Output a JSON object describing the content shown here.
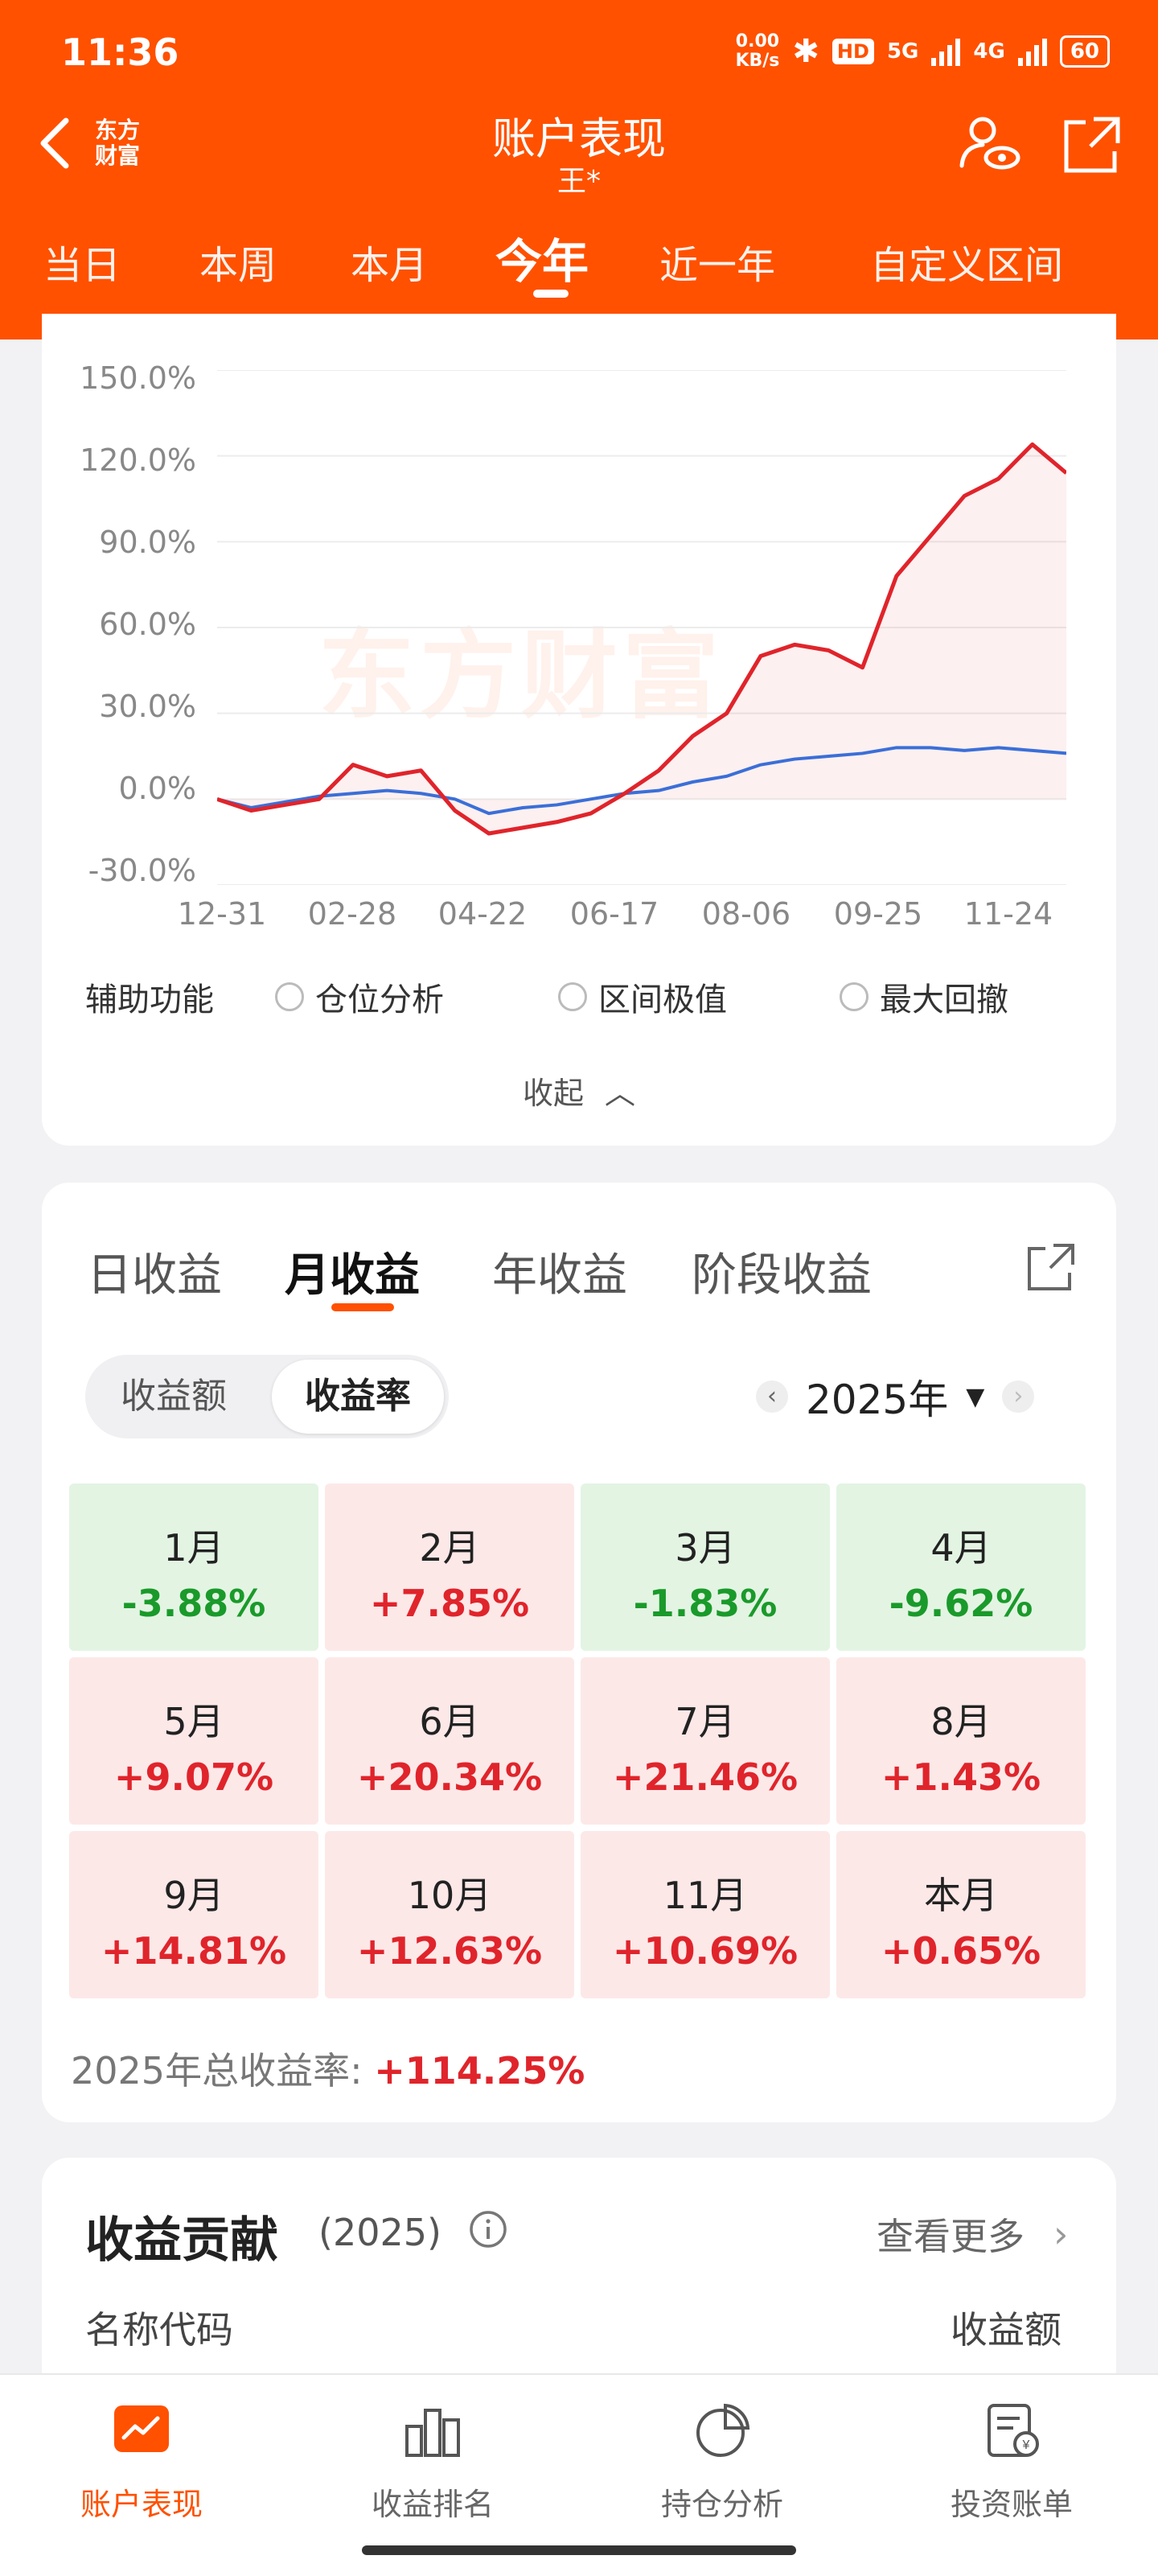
{
  "status_bar": {
    "time": "11:36",
    "speed_value": "0.00",
    "speed_unit": "KB/s",
    "hd_label": "HD",
    "net1": "5G",
    "net2": "4G",
    "battery": "60"
  },
  "nav": {
    "logo_line1": "东方",
    "logo_line2": "财富",
    "title": "账户表现",
    "subtitle": "王*"
  },
  "period_tabs": [
    "当日",
    "本周",
    "本月",
    "今年",
    "近一年",
    "自定义区间"
  ],
  "active_period": "今年",
  "watermark": "东方财富",
  "chart_data": {
    "type": "line",
    "x_tick_labels": [
      "12-31",
      "02-28",
      "04-22",
      "06-17",
      "08-06",
      "09-25",
      "11-24"
    ],
    "y_tick_labels": [
      "150.0%",
      "120.0%",
      "90.0%",
      "60.0%",
      "30.0%",
      "0.0%",
      "-30.0%"
    ],
    "ylim": [
      -30,
      150
    ],
    "x": [
      "12-31",
      "01-15",
      "01-31",
      "02-15",
      "02-28",
      "03-15",
      "03-31",
      "04-07",
      "04-22",
      "05-15",
      "05-31",
      "06-17",
      "06-30",
      "07-15",
      "07-31",
      "08-06",
      "08-15",
      "08-31",
      "09-10",
      "09-25",
      "10-10",
      "10-31",
      "11-10",
      "11-24",
      "12-10",
      "12-20"
    ],
    "series": [
      {
        "color": "#e0242b",
        "values": [
          0,
          -4,
          -2,
          0,
          12,
          8,
          10,
          -4,
          -12,
          -10,
          -8,
          -5,
          2,
          10,
          22,
          30,
          50,
          54,
          52,
          46,
          78,
          92,
          106,
          112,
          124,
          114
        ]
      },
      {
        "color": "#3b6fd8",
        "values": [
          0,
          -3,
          -1,
          1,
          2,
          3,
          2,
          0,
          -5,
          -3,
          -2,
          0,
          2,
          3,
          6,
          8,
          12,
          14,
          15,
          16,
          18,
          18,
          17,
          18,
          17,
          16
        ]
      }
    ],
    "grid": true
  },
  "aux": {
    "label": "辅助功能",
    "options": [
      "仓位分析",
      "区间极值",
      "最大回撤"
    ]
  },
  "collapse_label": "收起",
  "returns_tabs": [
    "日收益",
    "月收益",
    "年收益",
    "阶段收益"
  ],
  "active_returns_tab": "月收益",
  "segment": [
    "收益额",
    "收益率"
  ],
  "active_segment": "收益率",
  "year_label": "2025年",
  "months": [
    {
      "label": "1月",
      "value": "-3.88%",
      "trend": "down"
    },
    {
      "label": "2月",
      "value": "+7.85%",
      "trend": "up"
    },
    {
      "label": "3月",
      "value": "-1.83%",
      "trend": "down"
    },
    {
      "label": "4月",
      "value": "-9.62%",
      "trend": "down"
    },
    {
      "label": "5月",
      "value": "+9.07%",
      "trend": "up"
    },
    {
      "label": "6月",
      "value": "+20.34%",
      "trend": "up"
    },
    {
      "label": "7月",
      "value": "+21.46%",
      "trend": "up"
    },
    {
      "label": "8月",
      "value": "+1.43%",
      "trend": "up"
    },
    {
      "label": "9月",
      "value": "+14.81%",
      "trend": "up"
    },
    {
      "label": "10月",
      "value": "+12.63%",
      "trend": "up"
    },
    {
      "label": "11月",
      "value": "+10.69%",
      "trend": "up"
    },
    {
      "label": "本月",
      "value": "+0.65%",
      "trend": "up"
    }
  ],
  "total": {
    "label": "2025年总收益率:",
    "value": "+114.25%"
  },
  "contribution": {
    "title": "收益贡献",
    "year": "(2025)",
    "more": "查看更多",
    "col_name": "名称代码",
    "col_value": "收益额"
  },
  "bottom_nav": [
    {
      "label": "账户表现",
      "icon": "chart-icon",
      "active": true
    },
    {
      "label": "收益排名",
      "icon": "bar-rank-icon",
      "active": false
    },
    {
      "label": "持仓分析",
      "icon": "pie-icon",
      "active": false
    },
    {
      "label": "投资账单",
      "icon": "bill-icon",
      "active": false
    }
  ],
  "colors": {
    "brand": "#ff5100",
    "up": "#e0242b",
    "down": "#1a9a2a",
    "benchmark": "#3b6fd8"
  }
}
